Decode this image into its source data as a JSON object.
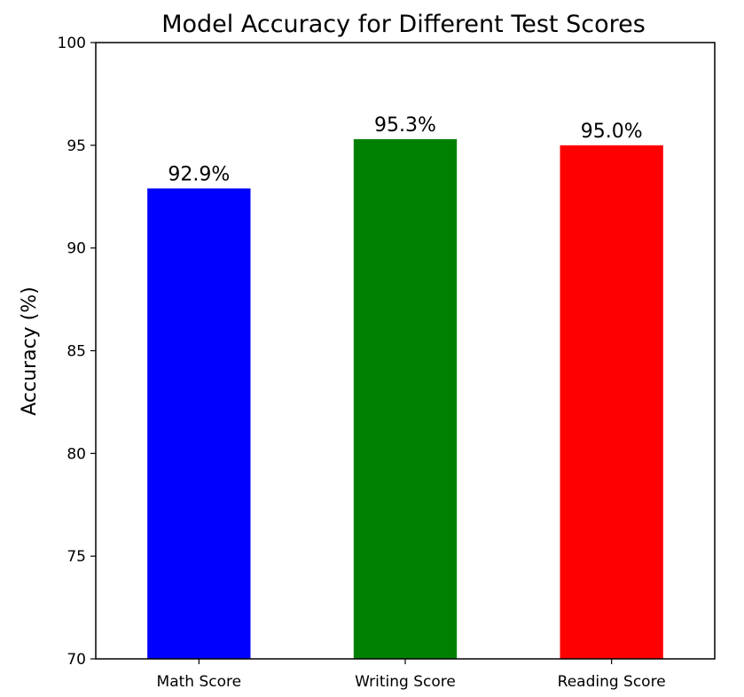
{
  "chart_data": {
    "type": "bar",
    "title": "Model Accuracy for Different Test Scores",
    "xlabel": "",
    "ylabel": "Accuracy (%)",
    "categories": [
      "Math Score",
      "Writing Score",
      "Reading Score"
    ],
    "values": [
      92.9,
      95.3,
      95.0
    ],
    "data_labels": [
      "92.9%",
      "95.3%",
      "95.0%"
    ],
    "colors": [
      "#0000ff",
      "#008000",
      "#ff0000"
    ],
    "ylim": [
      70,
      100
    ],
    "yticks": [
      70,
      75,
      80,
      85,
      90,
      95,
      100
    ],
    "grid": false,
    "legend": "none"
  }
}
